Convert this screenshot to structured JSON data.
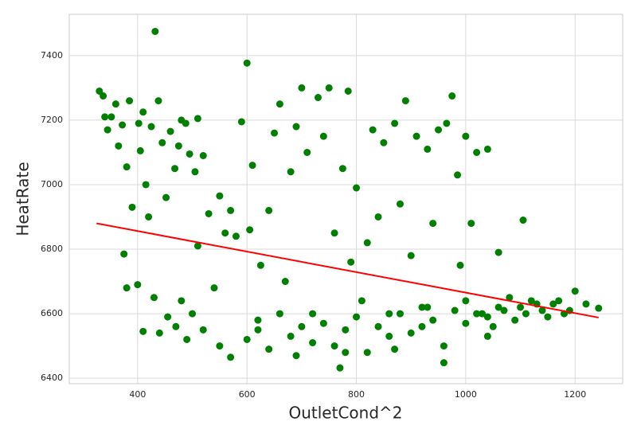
{
  "chart_data": {
    "type": "scatter",
    "x_label": "OutletCond^2",
    "y_label": "HeatRate",
    "xlim": [
      275,
      1287
    ],
    "ylim": [
      6383,
      7528
    ],
    "xticks": [
      400,
      600,
      800,
      1000,
      1200
    ],
    "yticks": [
      6400,
      6600,
      6800,
      7000,
      7200,
      7400
    ],
    "grid": true,
    "series": [
      {
        "type": "scatter",
        "color": "#008000",
        "x": [
          330,
          337,
          340,
          345,
          352,
          360,
          365,
          372,
          380,
          385,
          390,
          402,
          405,
          410,
          415,
          420,
          425,
          432,
          438,
          445,
          452,
          460,
          468,
          475,
          480,
          488,
          495,
          505,
          510,
          520,
          375,
          380,
          400,
          410,
          430,
          440,
          455,
          470,
          480,
          490,
          500,
          510,
          520,
          530,
          540,
          550,
          560,
          570,
          580,
          590,
          600,
          605,
          610,
          620,
          625,
          640,
          650,
          660,
          670,
          680,
          690,
          700,
          710,
          720,
          730,
          740,
          750,
          760,
          770,
          775,
          785,
          790,
          800,
          810,
          820,
          830,
          840,
          850,
          860,
          870,
          880,
          890,
          900,
          910,
          920,
          930,
          940,
          950,
          960,
          965,
          975,
          985,
          990,
          1000,
          1010,
          1020,
          1030,
          1040,
          1050,
          1060,
          1070,
          1080,
          1100,
          1105,
          1120,
          1140,
          1160,
          1180,
          1200,
          1220,
          1243,
          600,
          620,
          640,
          660,
          680,
          700,
          720,
          740,
          760,
          780,
          800,
          820,
          840,
          860,
          880,
          900,
          920,
          940,
          960,
          980,
          1000,
          1020,
          1040,
          1060,
          1090,
          1110,
          1130,
          1150,
          1170,
          1190,
          570,
          550,
          690,
          780,
          870,
          930,
          1000,
          1040
        ],
        "values": [
          7290,
          7275,
          7210,
          7170,
          7210,
          7250,
          7120,
          7185,
          7055,
          7260,
          6930,
          7190,
          7105,
          7225,
          7000,
          6900,
          7180,
          7475,
          7260,
          7130,
          6960,
          7165,
          7050,
          7120,
          7200,
          7190,
          7095,
          7040,
          7205,
          7090,
          6785,
          6680,
          6690,
          6545,
          6650,
          6540,
          6590,
          6560,
          6640,
          6520,
          6600,
          6810,
          6550,
          6910,
          6680,
          6965,
          6850,
          6920,
          6840,
          7195,
          7377,
          6860,
          7060,
          6550,
          6750,
          6920,
          7160,
          7250,
          6700,
          7040,
          7180,
          7300,
          7100,
          6600,
          7270,
          7150,
          7300,
          6850,
          6432,
          7050,
          7290,
          6760,
          6990,
          6640,
          6820,
          7170,
          6900,
          7130,
          6600,
          7190,
          6940,
          7260,
          6780,
          7150,
          6560,
          7110,
          6880,
          7170,
          6448,
          7190,
          7275,
          7030,
          6750,
          7150,
          6880,
          7100,
          6600,
          7110,
          6560,
          6790,
          6610,
          6650,
          6620,
          6890,
          6640,
          6610,
          6630,
          6600,
          6670,
          6630,
          6617,
          6520,
          6580,
          6490,
          6600,
          6530,
          6560,
          6510,
          6570,
          6500,
          6550,
          6590,
          6480,
          6560,
          6530,
          6600,
          6540,
          6620,
          6580,
          6500,
          6610,
          6570,
          6600,
          6530,
          6620,
          6580,
          6600,
          6630,
          6590,
          6640,
          6610,
          6465,
          6500,
          6470,
          6480,
          6490,
          6620,
          6640,
          6590
        ]
      },
      {
        "type": "line",
        "color": "#ff0000",
        "x": [
          325,
          1243
        ],
        "values": [
          6880,
          6588
        ]
      }
    ]
  }
}
